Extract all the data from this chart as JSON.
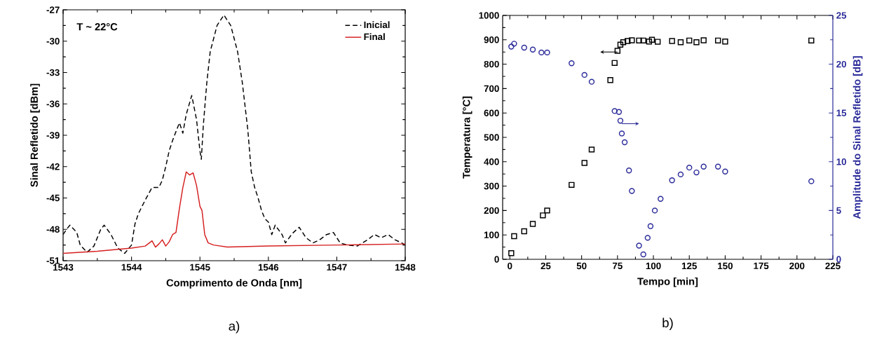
{
  "chart_data": [
    {
      "type": "line",
      "xlabel": "Comprimento de Onda [nm]",
      "ylabel": "Sinal Refletido [dBm]",
      "xlim": [
        1543,
        1548
      ],
      "xticks": [
        1543,
        1544,
        1545,
        1546,
        1547,
        1548
      ],
      "ylim": [
        -51,
        -27
      ],
      "yticks": [
        -51,
        -48,
        -45,
        -42,
        -39,
        -36,
        -33,
        -30,
        -27
      ],
      "legend": "top right",
      "grid": false,
      "annotations": [
        "T ~ 22°C",
        "a)"
      ],
      "series": [
        {
          "name": "Inicial",
          "color": "#000000",
          "line_style": "dashed",
          "x": [
            1543.0,
            1543.05,
            1543.1,
            1543.2,
            1543.25,
            1543.35,
            1543.45,
            1543.55,
            1543.6,
            1543.7,
            1543.8,
            1543.9,
            1544.0,
            1544.05,
            1544.1,
            1544.2,
            1544.3,
            1544.4,
            1544.45,
            1544.5,
            1544.55,
            1544.6,
            1544.7,
            1544.75,
            1544.8,
            1544.88,
            1544.95,
            1545.0,
            1545.02,
            1545.05,
            1545.1,
            1545.15,
            1545.25,
            1545.35,
            1545.45,
            1545.55,
            1545.62,
            1545.7,
            1545.75,
            1545.8,
            1545.85,
            1545.9,
            1545.95,
            1546.0,
            1546.05,
            1546.1,
            1546.2,
            1546.25,
            1546.35,
            1546.45,
            1546.55,
            1546.65,
            1546.75,
            1546.85,
            1546.95,
            1547.05,
            1547.15,
            1547.3,
            1547.45,
            1547.55,
            1547.65,
            1547.75,
            1547.85,
            1547.95,
            1548.0
          ],
          "values": [
            -48.5,
            -48.0,
            -47.6,
            -48.3,
            -49.5,
            -50.2,
            -49.6,
            -48.0,
            -47.6,
            -48.5,
            -49.8,
            -50.3,
            -49.5,
            -47.5,
            -46.5,
            -45.2,
            -44.0,
            -44.0,
            -43.3,
            -42.0,
            -40.5,
            -39.5,
            -37.8,
            -38.8,
            -37.0,
            -35.2,
            -37.5,
            -40.5,
            -41.3,
            -38.0,
            -34.0,
            -31.0,
            -28.5,
            -27.5,
            -28.5,
            -31.0,
            -34.0,
            -38.5,
            -42.5,
            -44.0,
            -45.0,
            -46.2,
            -47.0,
            -47.3,
            -48.5,
            -47.6,
            -48.5,
            -49.3,
            -48.4,
            -47.8,
            -48.8,
            -49.3,
            -49.0,
            -48.5,
            -48.3,
            -49.3,
            -49.5,
            -49.6,
            -49.0,
            -48.5,
            -48.8,
            -48.5,
            -49.0,
            -49.3,
            -49.5
          ]
        },
        {
          "name": "Final",
          "color": "#d62020",
          "line_style": "solid",
          "x": [
            1543.0,
            1543.5,
            1544.0,
            1544.2,
            1544.3,
            1544.35,
            1544.4,
            1544.45,
            1544.5,
            1544.55,
            1544.6,
            1544.65,
            1544.7,
            1544.75,
            1544.8,
            1544.85,
            1544.9,
            1544.95,
            1545.0,
            1545.03,
            1545.07,
            1545.12,
            1545.2,
            1545.4,
            1546.0,
            1547.0,
            1548.0
          ],
          "values": [
            -50.3,
            -50.1,
            -49.8,
            -49.6,
            -49.1,
            -49.7,
            -49.4,
            -49.0,
            -49.6,
            -49.2,
            -48.5,
            -48.3,
            -46.0,
            -44.0,
            -42.5,
            -42.8,
            -42.6,
            -43.8,
            -45.8,
            -46.2,
            -48.5,
            -49.3,
            -49.5,
            -49.7,
            -49.6,
            -49.5,
            -49.4
          ]
        }
      ]
    },
    {
      "type": "scatter",
      "xlabel": "Tempo [min]",
      "ylabel": "Temperatura [°C]",
      "y2label": "Amplitude do Sinal Refletido [dB]",
      "xlim": [
        -5,
        225
      ],
      "xticks": [
        0,
        25,
        50,
        75,
        100,
        125,
        150,
        175,
        200,
        225
      ],
      "ylim": [
        0,
        1000
      ],
      "yticks": [
        0,
        100,
        200,
        300,
        400,
        500,
        600,
        700,
        800,
        900,
        1000
      ],
      "y2lim": [
        0,
        25
      ],
      "y2ticks": [
        0,
        5,
        10,
        15,
        20,
        25
      ],
      "grid": false,
      "legend": false,
      "annotations": [
        "b)"
      ],
      "series": [
        {
          "color": "#000000",
          "marker": "square",
          "x": [
            1,
            3,
            10,
            16,
            23,
            26,
            43,
            52,
            57,
            70,
            73,
            75,
            77,
            79,
            82,
            85,
            90,
            93,
            97,
            99,
            103,
            113,
            119,
            125,
            130,
            135,
            145,
            150,
            210
          ],
          "values": [
            25,
            95,
            115,
            145,
            180,
            200,
            305,
            395,
            450,
            735,
            805,
            855,
            880,
            890,
            895,
            898,
            897,
            897,
            893,
            900,
            892,
            895,
            890,
            897,
            890,
            898,
            897,
            893,
            897
          ]
        },
        {
          "color": "#2b2b9a",
          "marker": "circle",
          "axis": "y2",
          "x": [
            1,
            3,
            10,
            16,
            22,
            26,
            43,
            52,
            57,
            73,
            76,
            77,
            78,
            80,
            83,
            85,
            90,
            93,
            96,
            98,
            101,
            105,
            113,
            119,
            125,
            130,
            135,
            145,
            150,
            210
          ],
          "values": [
            21.8,
            22.1,
            21.7,
            21.5,
            21.2,
            21.2,
            20.1,
            18.9,
            18.2,
            15.2,
            15.1,
            14.2,
            12.9,
            12.0,
            9.1,
            7.0,
            1.4,
            0.5,
            2.2,
            3.4,
            5.0,
            6.2,
            8.1,
            8.7,
            9.4,
            8.9,
            9.5,
            9.5,
            9.0,
            8.0
          ]
        }
      ]
    }
  ]
}
